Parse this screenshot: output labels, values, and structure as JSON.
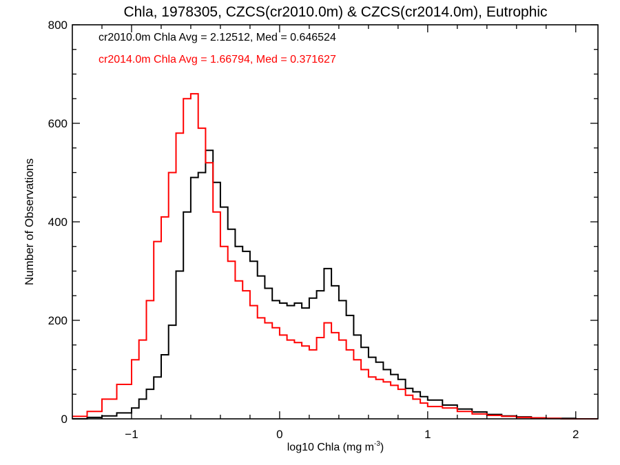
{
  "chart_data": {
    "type": "line",
    "title": "Chla, 1978305, CZCS(cr2010.0m) & CZCS(cr2014.0m), Eutrophic",
    "xlabel": "log10 Chla (mg m",
    "xlabel_sup": "-3",
    "xlabel_end": ")",
    "ylabel": "Number of Observations",
    "xlim": [
      -1.4,
      2.15
    ],
    "ylim": [
      0,
      800
    ],
    "xticks": [
      -1,
      0,
      1,
      2
    ],
    "xtick_labels": [
      "−1",
      "0",
      "1",
      "2"
    ],
    "yticks": [
      0,
      200,
      400,
      600,
      800
    ],
    "ytick_labels": [
      "0",
      "200",
      "400",
      "600",
      "800"
    ],
    "grid": false,
    "legend_placement": "top-left",
    "annotations": [
      "cr2010.0m Chla Avg = 2.12512, Med = 0.646524",
      "cr2014.0m Chla Avg = 1.66794, Med = 0.371627"
    ],
    "series": [
      {
        "name": "cr2010.0m",
        "color": "#000000",
        "step": "histogram",
        "x": [
          -1.4,
          -1.3,
          -1.2,
          -1.1,
          -1.0,
          -0.95,
          -0.9,
          -0.85,
          -0.8,
          -0.75,
          -0.7,
          -0.65,
          -0.6,
          -0.55,
          -0.5,
          -0.45,
          -0.4,
          -0.35,
          -0.3,
          -0.25,
          -0.2,
          -0.15,
          -0.1,
          -0.05,
          0.0,
          0.05,
          0.1,
          0.15,
          0.2,
          0.25,
          0.3,
          0.35,
          0.4,
          0.45,
          0.5,
          0.55,
          0.6,
          0.65,
          0.7,
          0.75,
          0.8,
          0.85,
          0.9,
          0.95,
          1.0,
          1.1,
          1.2,
          1.3,
          1.4,
          1.5,
          1.6,
          1.7,
          1.8,
          1.9,
          2.0,
          2.15
        ],
        "y": [
          0,
          3,
          6,
          12,
          22,
          40,
          60,
          85,
          130,
          190,
          300,
          420,
          490,
          500,
          545,
          480,
          430,
          385,
          350,
          340,
          320,
          290,
          265,
          240,
          235,
          230,
          235,
          225,
          245,
          260,
          305,
          270,
          240,
          210,
          170,
          145,
          125,
          115,
          100,
          90,
          80,
          62,
          55,
          45,
          38,
          28,
          20,
          14,
          9,
          6,
          4,
          2,
          1,
          1,
          0,
          0
        ]
      },
      {
        "name": "cr2014.0m",
        "color": "#ff0000",
        "step": "histogram",
        "x": [
          -1.4,
          -1.3,
          -1.2,
          -1.1,
          -1.0,
          -0.95,
          -0.9,
          -0.85,
          -0.8,
          -0.75,
          -0.7,
          -0.65,
          -0.6,
          -0.55,
          -0.5,
          -0.45,
          -0.4,
          -0.35,
          -0.3,
          -0.25,
          -0.2,
          -0.15,
          -0.1,
          -0.05,
          0.0,
          0.05,
          0.1,
          0.15,
          0.2,
          0.25,
          0.3,
          0.35,
          0.4,
          0.45,
          0.5,
          0.55,
          0.6,
          0.65,
          0.7,
          0.75,
          0.8,
          0.85,
          0.9,
          0.95,
          1.0,
          1.1,
          1.2,
          1.3,
          1.4,
          1.5,
          1.6,
          1.7,
          1.8,
          1.9,
          2.0,
          2.15
        ],
        "y": [
          5,
          15,
          40,
          70,
          120,
          160,
          240,
          360,
          410,
          500,
          580,
          650,
          660,
          590,
          520,
          420,
          350,
          320,
          280,
          260,
          230,
          205,
          195,
          185,
          170,
          160,
          155,
          148,
          140,
          165,
          195,
          175,
          160,
          140,
          120,
          100,
          85,
          80,
          75,
          68,
          60,
          48,
          40,
          32,
          25,
          22,
          15,
          10,
          7,
          5,
          3,
          2,
          1,
          0,
          0,
          0
        ]
      }
    ]
  }
}
